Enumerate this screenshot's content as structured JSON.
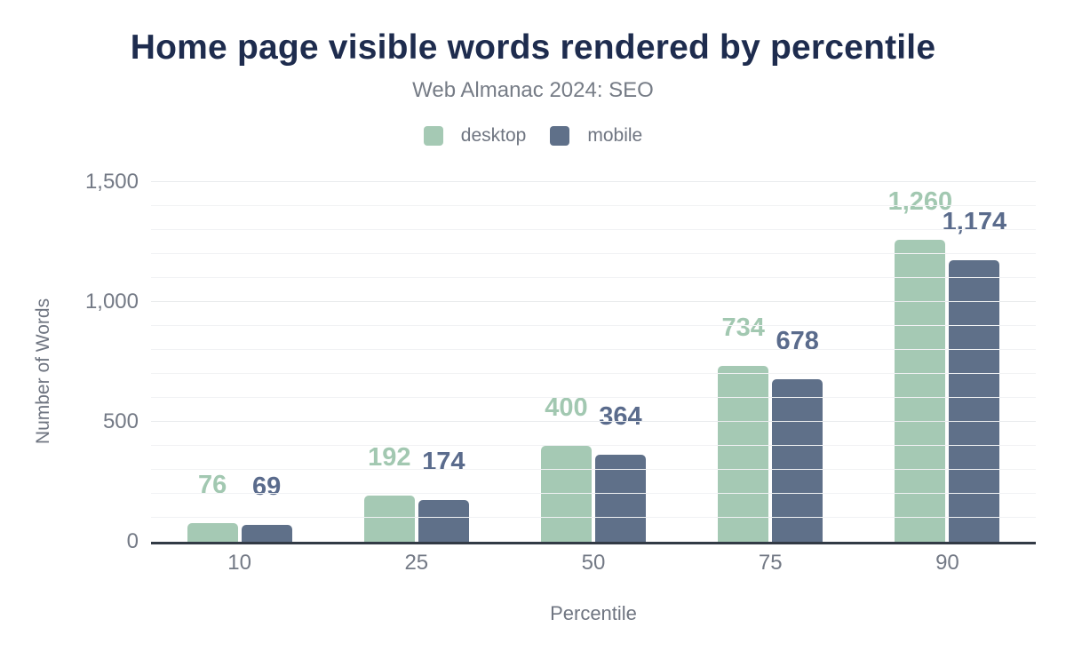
{
  "header": {
    "title": "Home page visible words rendered by percentile",
    "subtitle": "Web Almanac 2024: SEO"
  },
  "colors": {
    "title": "#1e2c4e",
    "muted_text": "#6f7581",
    "tick_text": "#737985",
    "axis_line": "#323a45",
    "gridline_minor": "#f1f2f4",
    "gridline_major": "#e9ebed",
    "background": "#ffffff"
  },
  "chart_data": {
    "type": "bar",
    "title": "Home page visible words rendered by percentile",
    "subtitle": "Web Almanac 2024: SEO",
    "categories": [
      "10",
      "25",
      "50",
      "75",
      "90"
    ],
    "series": [
      {
        "name": "desktop",
        "color": "#a5c9b4",
        "label_color": "#a2c8b1",
        "values": [
          76,
          192,
          400,
          734,
          1260
        ]
      },
      {
        "name": "mobile",
        "color": "#5f7089",
        "label_color": "#5a6b8c",
        "values": [
          69,
          174,
          364,
          678,
          1174
        ]
      }
    ],
    "xlabel": "Percentile",
    "ylabel": "Number of Words",
    "ylim": [
      0,
      1500
    ],
    "yticks": [
      0,
      500,
      1000,
      1500
    ],
    "minor_grid_step": 100,
    "major_grid_step": 500,
    "grid": true,
    "legend_position": "top",
    "data_labels": true
  }
}
